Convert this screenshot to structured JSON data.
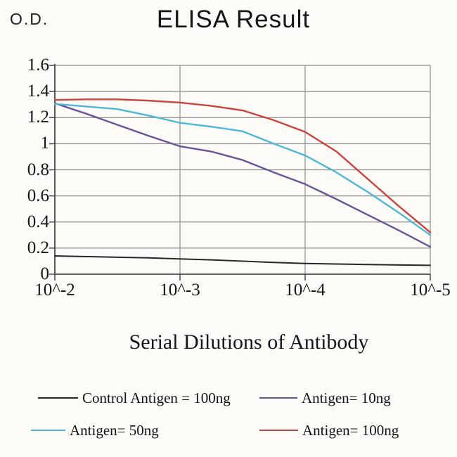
{
  "chart_data": {
    "type": "line",
    "title": "ELISA Result",
    "ylabel": "O.D.",
    "xlabel": "Serial Dilutions of Antibody",
    "x_tick_labels": [
      "10^-2",
      "10^-3",
      "10^-4",
      "10^-5"
    ],
    "y_tick_labels": [
      "0",
      "0.2",
      "0.4",
      "0.6",
      "0.8",
      "1",
      "1.2",
      "1.4",
      "1.6"
    ],
    "ylim": [
      0,
      1.6
    ],
    "x_scale": "log-dilution, one unit per decade",
    "x_decades": [
      0,
      0.25,
      0.5,
      0.75,
      1,
      1.25,
      1.5,
      1.75,
      2,
      2.25,
      2.5,
      2.75,
      3
    ],
    "grid": true,
    "legend_position": "bottom",
    "axis_color": "#4a4a4a",
    "grid_color": "#8c8c8c",
    "series": [
      {
        "name": "Control Antigen = 100ng",
        "color": "#262626",
        "values": [
          0.14,
          0.135,
          0.13,
          0.125,
          0.117,
          0.11,
          0.1,
          0.09,
          0.082,
          0.078,
          0.074,
          0.071,
          0.068
        ]
      },
      {
        "name": "Antigen= 10ng",
        "color": "#6a5299",
        "values": [
          1.31,
          1.23,
          1.145,
          1.06,
          0.98,
          0.94,
          0.875,
          0.78,
          0.69,
          0.575,
          0.455,
          0.335,
          0.21
        ]
      },
      {
        "name": "Antigen= 50ng",
        "color": "#4db8d6",
        "values": [
          1.305,
          1.285,
          1.265,
          1.215,
          1.16,
          1.13,
          1.095,
          1.0,
          0.91,
          0.78,
          0.63,
          0.47,
          0.3
        ]
      },
      {
        "name": "Antigen= 100ng",
        "color": "#c8443c",
        "values": [
          1.335,
          1.34,
          1.34,
          1.33,
          1.315,
          1.29,
          1.255,
          1.18,
          1.09,
          0.94,
          0.73,
          0.52,
          0.32
        ]
      }
    ]
  },
  "legend": {
    "items": [
      {
        "label": "Control Antigen = 100ng",
        "series": 0
      },
      {
        "label": "Antigen= 10ng",
        "series": 1
      },
      {
        "label": "Antigen= 50ng",
        "series": 2
      },
      {
        "label": "Antigen= 100ng",
        "series": 3
      }
    ]
  }
}
